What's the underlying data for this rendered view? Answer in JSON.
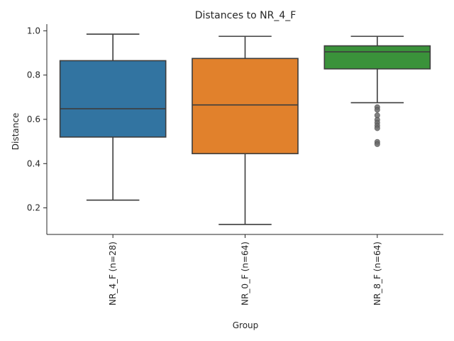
{
  "chart_data": {
    "type": "box",
    "title": "Distances to NR_4_F",
    "xlabel": "Group",
    "ylabel": "Distance",
    "ylim": [
      0.08,
      1.03
    ],
    "yticks": [
      0.2,
      0.4,
      0.6,
      0.8,
      1.0
    ],
    "ytick_labels": [
      "0.2",
      "0.4",
      "0.6",
      "0.8",
      "1.0"
    ],
    "categories": [
      "NR_4_F (n=28)",
      "NR_0_F (n=64)",
      "NR_8_F (n=64)"
    ],
    "boxes": [
      {
        "name": "NR_4_F (n=28)",
        "whisker_low": 0.235,
        "q1": 0.52,
        "median": 0.648,
        "q3": 0.865,
        "whisker_high": 0.985,
        "outliers": [],
        "color": "#3274a1"
      },
      {
        "name": "NR_0_F (n=64)",
        "whisker_low": 0.125,
        "q1": 0.445,
        "median": 0.665,
        "q3": 0.875,
        "whisker_high": 0.975,
        "outliers": [],
        "color": "#e1812c"
      },
      {
        "name": "NR_8_F (n=64)",
        "whisker_low": 0.675,
        "q1": 0.828,
        "median": 0.905,
        "q3": 0.932,
        "whisker_high": 0.975,
        "outliers": [
          0.655,
          0.643,
          0.618,
          0.598,
          0.585,
          0.572,
          0.56,
          0.498,
          0.488
        ],
        "color": "#3a923a"
      }
    ],
    "grid": false,
    "legend": "none"
  }
}
